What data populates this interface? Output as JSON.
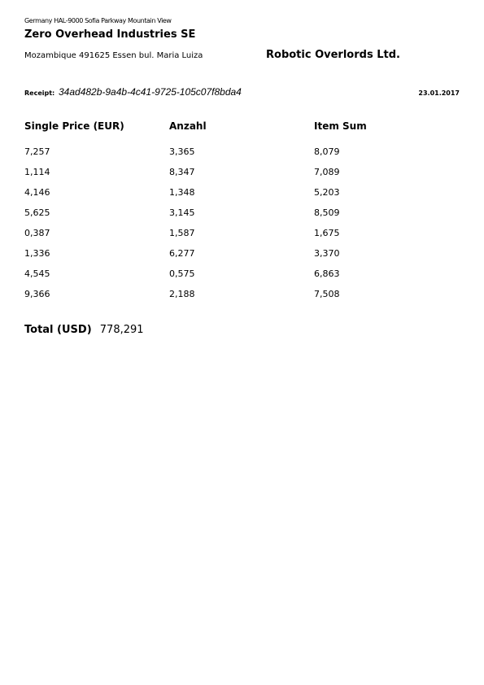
{
  "sender": {
    "line": "Germany HAL-9000 Sofia Parkway Mountain View",
    "company": "Zero Overhead Industries SE",
    "address": "Mozambique 491625 Essen bul. Maria Luiza"
  },
  "recipient": {
    "name": "Robotic Overlords Ltd."
  },
  "receipt": {
    "label": "Receipt:",
    "id": "34ad482b-9a4b-4c41-9725-105c07f8bda4",
    "date": "23.01.2017"
  },
  "table": {
    "headers": [
      "Single Price (EUR)",
      "Anzahl",
      "Item Sum"
    ],
    "rows": [
      [
        "7,257",
        "3,365",
        "8,079"
      ],
      [
        "1,114",
        "8,347",
        "7,089"
      ],
      [
        "4,146",
        "1,348",
        "5,203"
      ],
      [
        "5,625",
        "3,145",
        "8,509"
      ],
      [
        "0,387",
        "1,587",
        "1,675"
      ],
      [
        "1,336",
        "6,277",
        "3,370"
      ],
      [
        "4,545",
        "0,575",
        "6,863"
      ],
      [
        "9,366",
        "2,188",
        "7,508"
      ]
    ]
  },
  "total": {
    "label": "Total (USD)",
    "value": "778,291"
  }
}
